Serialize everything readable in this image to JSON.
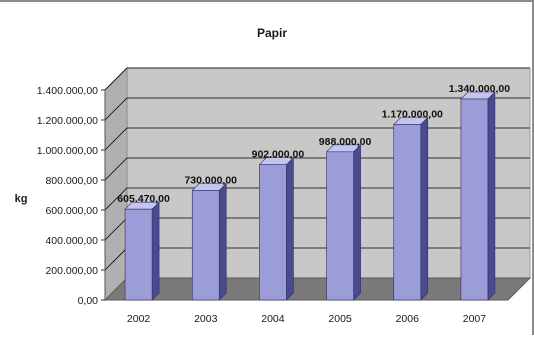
{
  "chart_data": {
    "type": "bar",
    "title": "Papir",
    "ylabel": "kg",
    "xlabel": "",
    "categories": [
      "2002",
      "2003",
      "2004",
      "2005",
      "2006",
      "2007"
    ],
    "values": [
      605470,
      730000,
      902000,
      988000,
      1170000,
      1340000
    ],
    "data_labels": [
      "605.470,00",
      "730.000,00",
      "902.000,00",
      "988.000,00",
      "1.170.000,00",
      "1.340.000,00"
    ],
    "ylim": [
      0,
      1400000
    ],
    "yticks": [
      0,
      200000,
      400000,
      600000,
      800000,
      1000000,
      1200000,
      1400000
    ],
    "ytick_labels": [
      "0,00",
      "200.000,00",
      "400.000,00",
      "600.000,00",
      "800.000,00",
      "1.000.000,00",
      "1.200.000,00",
      "1.400.000,00"
    ],
    "grid": true,
    "style": "3d-column",
    "colors": {
      "bar_front": "#9c9cd8",
      "bar_side": "#4a4a8e",
      "bar_top": "#c4c4ee",
      "back_wall": "#c8c8c8",
      "floor": "#7a7a7a",
      "grid": "#000000"
    }
  }
}
